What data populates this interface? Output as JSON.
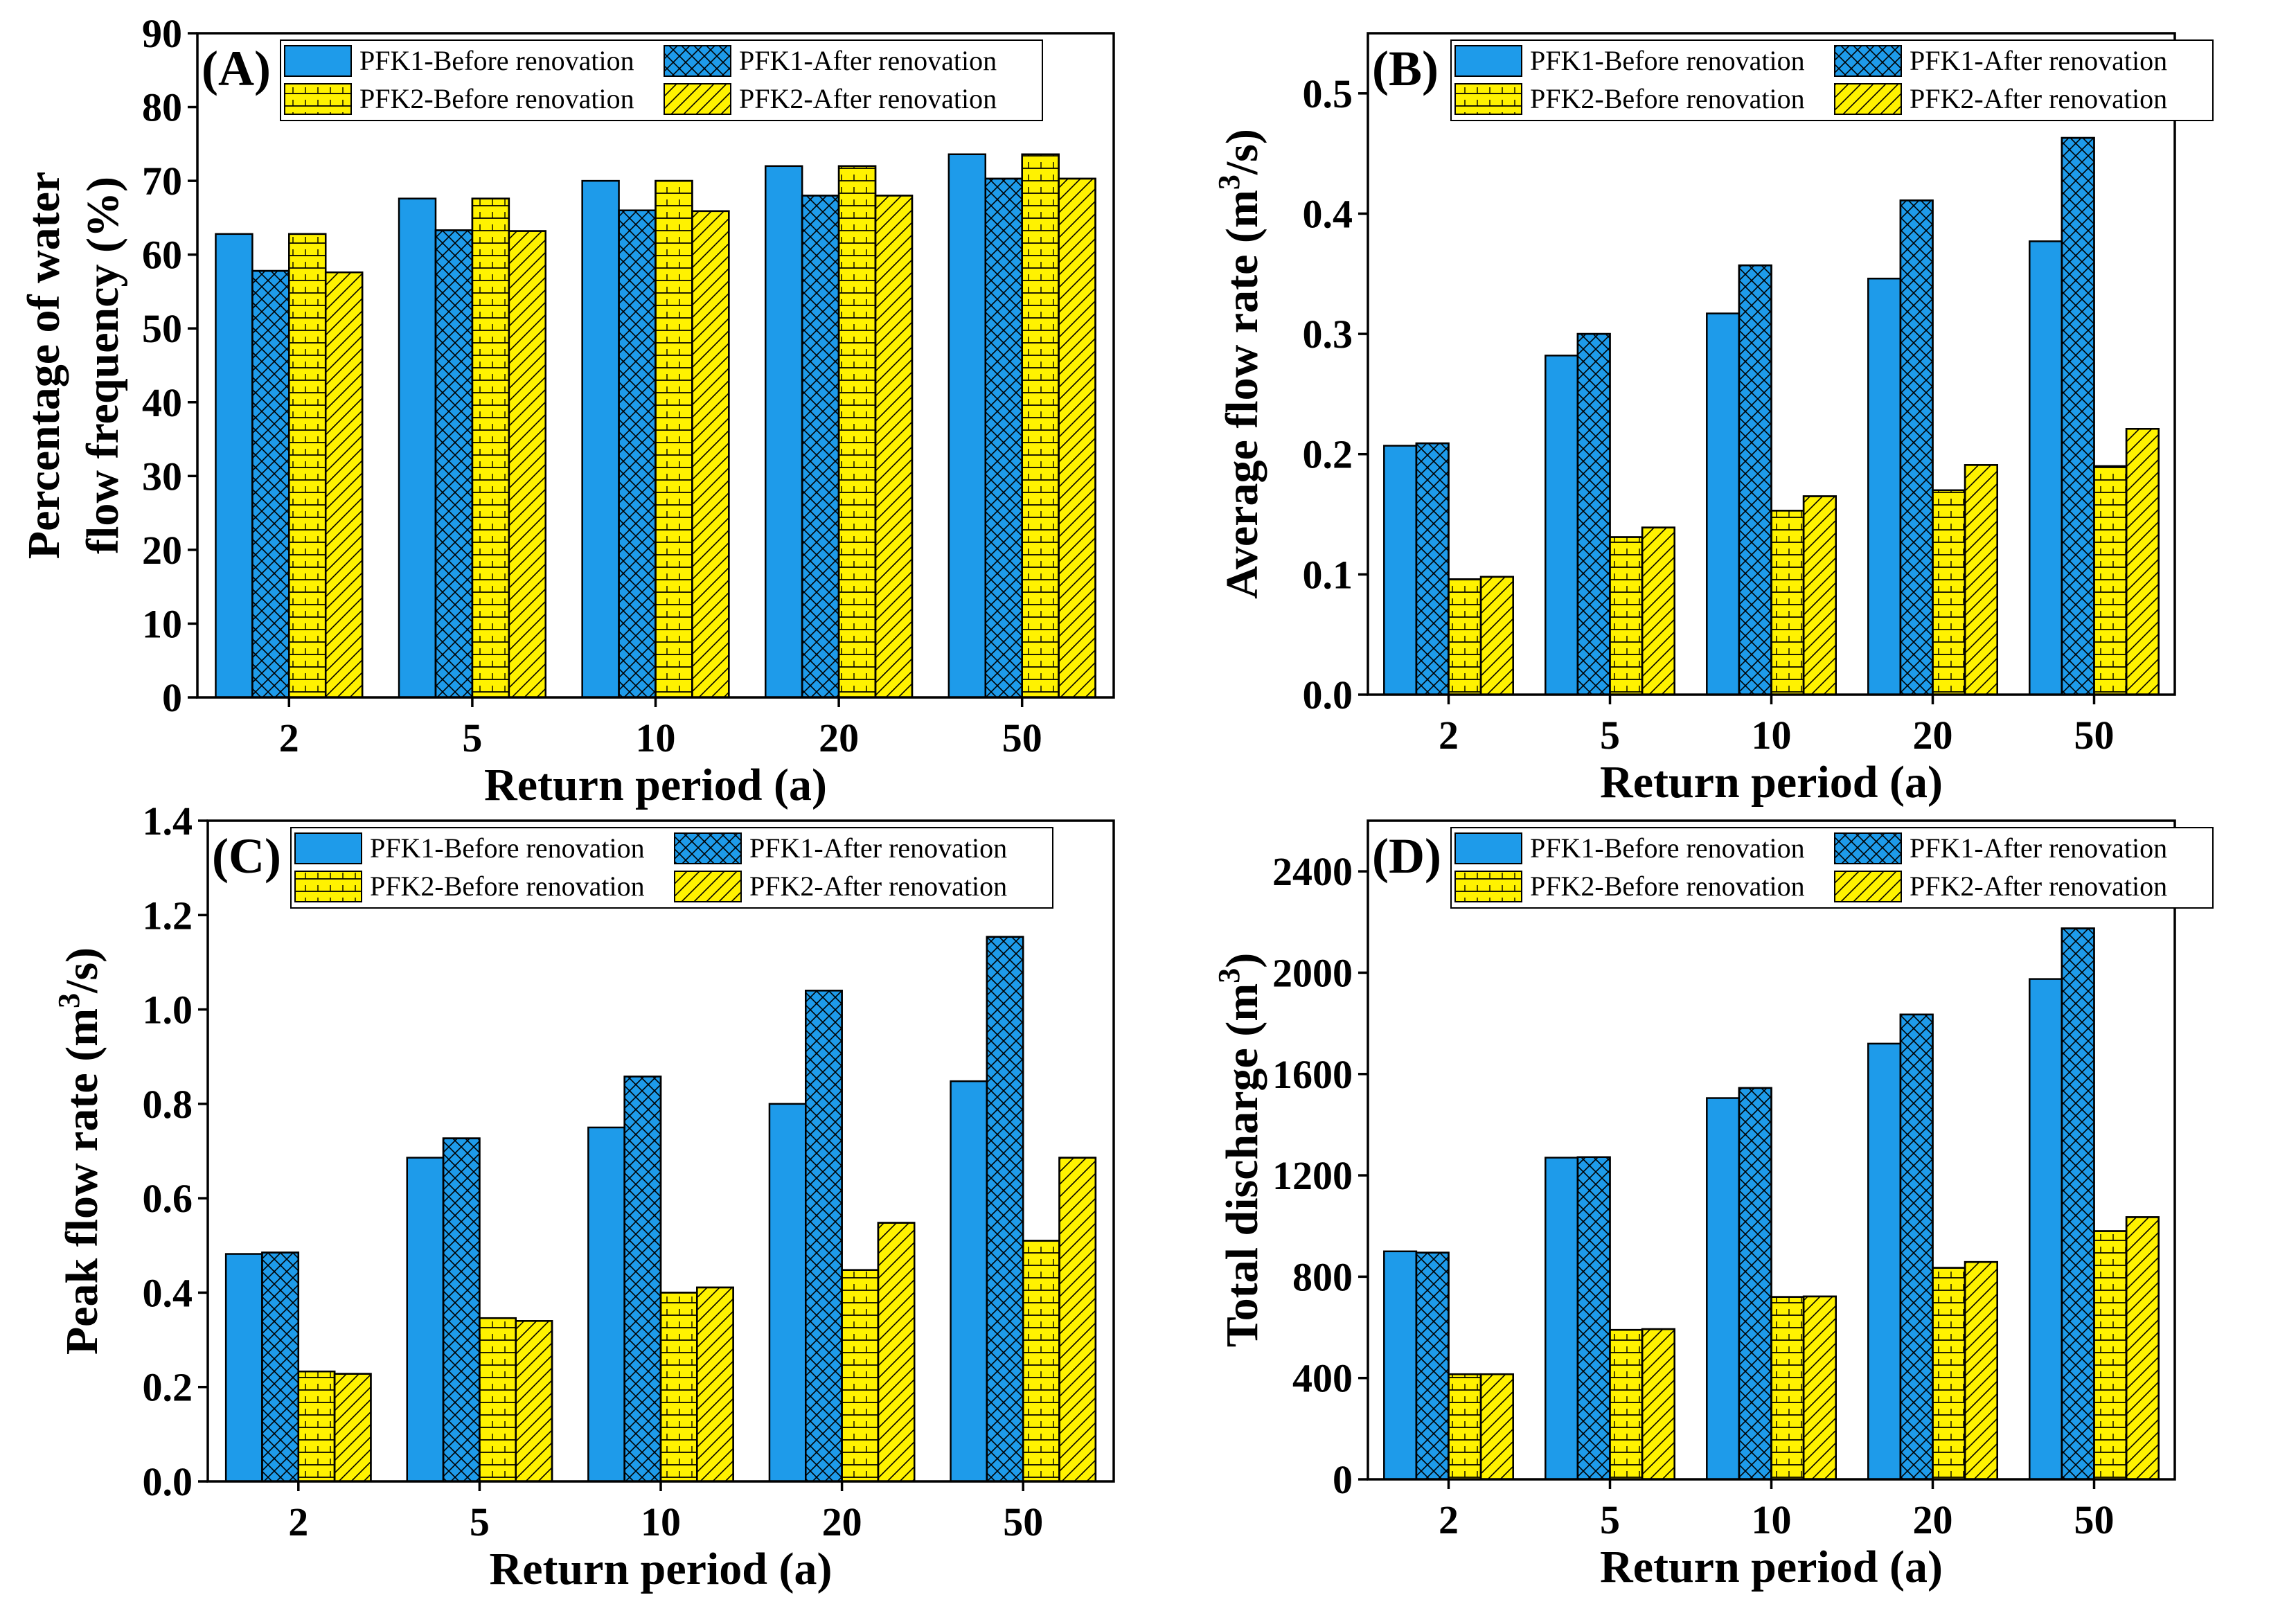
{
  "colors": {
    "pfk1": "#1E9BEA",
    "pfk2": "#FFF200",
    "outline": "#000000"
  },
  "legend": [
    "PFK1-Before renovation",
    "PFK1-After renovation",
    "PFK2-Before renovation",
    "PFK2-After renovation"
  ],
  "chart_data": [
    {
      "panel": "(A)",
      "type": "bar",
      "xlabel": "Return period (a)",
      "ylabel": [
        "Percentage of water",
        "flow frequency (%)"
      ],
      "categories": [
        "2",
        "5",
        "10",
        "20",
        "50"
      ],
      "ylim": [
        0,
        90
      ],
      "yticks": [
        0,
        10,
        20,
        30,
        40,
        50,
        60,
        70,
        80,
        90
      ],
      "legend_position": "top",
      "series": [
        {
          "name": "PFK1-Before renovation",
          "values": [
            62.8,
            67.6,
            70.0,
            72.0,
            73.6
          ]
        },
        {
          "name": "PFK1-After renovation",
          "values": [
            57.8,
            63.3,
            66.0,
            68.0,
            70.3
          ]
        },
        {
          "name": "PFK2-Before renovation",
          "values": [
            62.8,
            67.6,
            70.0,
            72.0,
            73.6
          ]
        },
        {
          "name": "PFK2-After renovation",
          "values": [
            57.6,
            63.2,
            65.9,
            68.0,
            70.3
          ]
        }
      ]
    },
    {
      "panel": "(B)",
      "type": "bar",
      "xlabel": "Return period (a)",
      "ylabel_pre": "Average flow rate (m",
      "ylabel_sup": "3",
      "ylabel_post": "/s)",
      "categories": [
        "2",
        "5",
        "10",
        "20",
        "50"
      ],
      "ylim": [
        0,
        0.55
      ],
      "yticks": [
        "0.0",
        "0.1",
        "0.2",
        "0.3",
        "0.4",
        "0.5"
      ],
      "legend_position": "top",
      "series": [
        {
          "name": "PFK1-Before renovation",
          "values": [
            0.207,
            0.282,
            0.317,
            0.346,
            0.377
          ]
        },
        {
          "name": "PFK1-After renovation",
          "values": [
            0.209,
            0.3,
            0.357,
            0.411,
            0.463
          ]
        },
        {
          "name": "PFK2-Before renovation",
          "values": [
            0.096,
            0.131,
            0.153,
            0.17,
            0.19
          ]
        },
        {
          "name": "PFK2-After renovation",
          "values": [
            0.098,
            0.139,
            0.165,
            0.191,
            0.221
          ]
        }
      ]
    },
    {
      "panel": "(C)",
      "type": "bar",
      "xlabel": "Return period (a)",
      "ylabel_pre": "Peak flow rate (m",
      "ylabel_sup": "3",
      "ylabel_post": "/s)",
      "categories": [
        "2",
        "5",
        "10",
        "20",
        "50"
      ],
      "ylim": [
        0,
        1.4
      ],
      "yticks": [
        "0.0",
        "0.2",
        "0.4",
        "0.6",
        "0.8",
        "1.0",
        "1.2",
        "1.4"
      ],
      "legend_position": "top",
      "series": [
        {
          "name": "PFK1-Before renovation",
          "values": [
            0.482,
            0.686,
            0.75,
            0.8,
            0.848
          ]
        },
        {
          "name": "PFK1-After renovation",
          "values": [
            0.485,
            0.727,
            0.858,
            1.04,
            1.154
          ]
        },
        {
          "name": "PFK2-Before renovation",
          "values": [
            0.233,
            0.346,
            0.4,
            0.448,
            0.51
          ]
        },
        {
          "name": "PFK2-After renovation",
          "values": [
            0.228,
            0.34,
            0.411,
            0.548,
            0.686
          ]
        }
      ]
    },
    {
      "panel": "(D)",
      "type": "bar",
      "xlabel": "Return period (a)",
      "ylabel_pre": "Total discharge (m",
      "ylabel_sup": "3",
      "ylabel_post": ")",
      "categories": [
        "2",
        "5",
        "10",
        "20",
        "50"
      ],
      "ylim": [
        0,
        2600
      ],
      "yticks": [
        "0",
        "400",
        "800",
        "1200",
        "1600",
        "2000",
        "2400"
      ],
      "legend_position": "top",
      "series": [
        {
          "name": "PFK1-Before renovation",
          "values": [
            900,
            1270,
            1505,
            1720,
            1975
          ]
        },
        {
          "name": "PFK1-After renovation",
          "values": [
            895,
            1272,
            1545,
            1835,
            2175
          ]
        },
        {
          "name": "PFK2-Before renovation",
          "values": [
            415,
            590,
            720,
            835,
            980
          ]
        },
        {
          "name": "PFK2-After renovation",
          "values": [
            415,
            593,
            722,
            858,
            1035
          ]
        }
      ]
    }
  ]
}
